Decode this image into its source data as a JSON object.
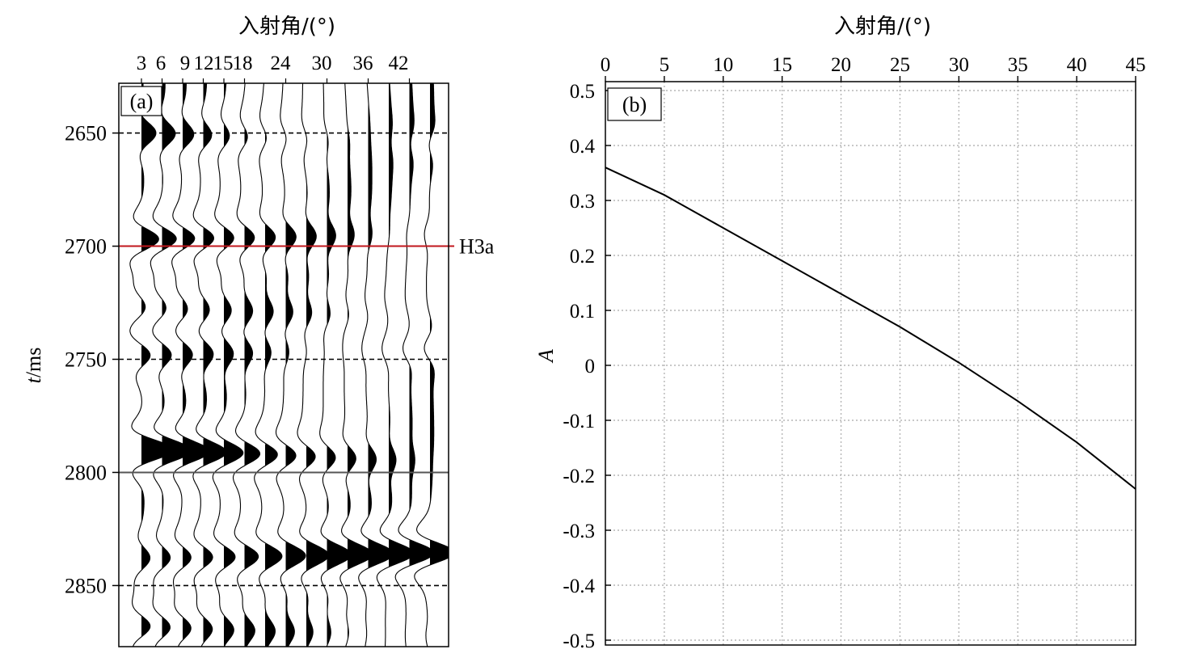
{
  "chart_data": [
    {
      "panel": "(a)",
      "type": "wiggle",
      "xlabel": "入射角/(°)",
      "ylabel_italic": "t",
      "ylabel_rest": "/ms",
      "x_ticks": [
        "3",
        "6",
        "9",
        "12",
        "15",
        "18",
        "24",
        "30",
        "36",
        "42"
      ],
      "traces": [
        3,
        6,
        9,
        12,
        15,
        18,
        21,
        24,
        27,
        30,
        33,
        36,
        39,
        42,
        45
      ],
      "y_ticks": [
        2650,
        2700,
        2750,
        2800,
        2850
      ],
      "ylim": [
        2628,
        2877
      ],
      "dashed_lines": [
        2650,
        2750,
        2850
      ],
      "solid_line": 2800,
      "horizon": {
        "label": "H3a",
        "time": 2700,
        "color": "#c0161c"
      },
      "events": [
        {
          "t": 2650,
          "amp0": 0.35,
          "slope": -0.012
        },
        {
          "t": 2697,
          "amp0": 0.6,
          "slope": -0.018
        },
        {
          "t": 2727,
          "amp0": 0.25,
          "slope": -0.006
        },
        {
          "t": 2748,
          "amp0": 0.35,
          "slope": -0.014
        },
        {
          "t": 2790,
          "amp0": 0.9,
          "slope": -0.024
        },
        {
          "t": 2838,
          "amp0": 0.3,
          "slope": 0.015
        },
        {
          "t": 2868,
          "amp0": 0.4,
          "slope": -0.012
        }
      ]
    },
    {
      "panel": "(b)",
      "type": "line",
      "xlabel": "入射角/(°)",
      "ylabel": "A",
      "xlim": [
        0,
        45
      ],
      "ylim": [
        -0.5,
        0.5
      ],
      "x_ticks": [
        0,
        5,
        10,
        15,
        20,
        25,
        30,
        35,
        40,
        45
      ],
      "y_ticks": [
        "0.5",
        "0.4",
        "0.3",
        "0.2",
        "0.1",
        "0",
        "-0.1",
        "-0.2",
        "-0.3",
        "-0.4",
        "-0.5"
      ],
      "grid": true,
      "series": [
        {
          "x": [
            0,
            5,
            10,
            15,
            20,
            25,
            30,
            35,
            40,
            45
          ],
          "y": [
            0.36,
            0.31,
            0.25,
            0.19,
            0.13,
            0.07,
            0.005,
            -0.065,
            -0.14,
            -0.225
          ]
        }
      ]
    }
  ]
}
